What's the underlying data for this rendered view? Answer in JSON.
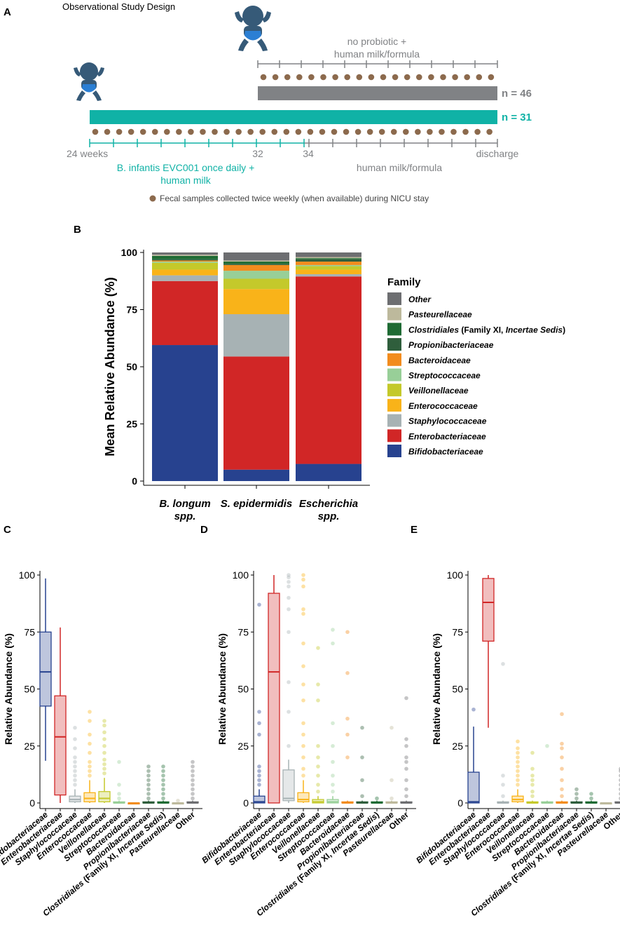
{
  "colors": {
    "teal": "#10b2a6",
    "grey": "#808285",
    "brown": "#8c6a4d",
    "baby": "#365a78",
    "diaper": "#2b7fd4"
  },
  "family_colors": {
    "Bifidobacteriaceae": "#27428f",
    "Enterobacteriaceae": "#d12626",
    "Staphylococcaceae": "#a7b2b4",
    "Enterococcaceae": "#f9b319",
    "Veillonellaceae": "#c4c92b",
    "Streptococcaceae": "#98cf98",
    "Bacteroidaceae": "#f28c1e",
    "Propionibacteriaceae": "#2f5e3c",
    "Clostridiales": "#1f6b34",
    "Pasteurellaceae": "#bdb99c",
    "Other": "#6d6e71"
  },
  "panelA": {
    "letter": "A",
    "title": "Observational Study Design",
    "top_label_line1": "no probiotic +",
    "top_label_line2": "human milk/formula",
    "n_grey": "n = 46",
    "n_teal": "n = 31",
    "tick_24": "24 weeks",
    "tick_32": "32",
    "tick_34": "34",
    "tick_discharge": "discharge",
    "probiotic_line1": "B. infantis EVC001 once daily +",
    "probiotic_line2": "human milk",
    "milk_label": "human milk/formula",
    "legend_text": "Fecal samples collected twice weekly (when available) during NICU stay"
  },
  "panelB": {
    "letter": "B",
    "ylabel": "Mean Relative Abundance (%)",
    "legend_title": "Family",
    "legend_items": [
      {
        "key": "Other",
        "parts": [
          {
            "t": "Other",
            "i": true
          }
        ]
      },
      {
        "key": "Pasteurellaceae",
        "parts": [
          {
            "t": "Pasteurellaceae",
            "i": true
          }
        ]
      },
      {
        "key": "Clostridiales",
        "parts": [
          {
            "t": "Clostridiales",
            "i": true
          },
          {
            "t": " (Family XI, ",
            "i": false
          },
          {
            "t": "Incertae Sedis",
            "i": true
          },
          {
            "t": ")",
            "i": false
          }
        ]
      },
      {
        "key": "Propionibacteriaceae",
        "parts": [
          {
            "t": "Propionibacteriaceae",
            "i": true
          }
        ]
      },
      {
        "key": "Bacteroidaceae",
        "parts": [
          {
            "t": "Bacteroidaceae",
            "i": true
          }
        ]
      },
      {
        "key": "Streptococcaceae",
        "parts": [
          {
            "t": "Streptococcaceae",
            "i": true
          }
        ]
      },
      {
        "key": "Veillonellaceae",
        "parts": [
          {
            "t": "Veillonellaceae",
            "i": true
          }
        ]
      },
      {
        "key": "Enterococcaceae",
        "parts": [
          {
            "t": "Enterococcaceae",
            "i": true
          }
        ]
      },
      {
        "key": "Staphylococcaceae",
        "parts": [
          {
            "t": "Staphylococcaceae",
            "i": true
          }
        ]
      },
      {
        "key": "Enterobacteriaceae",
        "parts": [
          {
            "t": "Enterobacteriaceae",
            "i": true
          }
        ]
      },
      {
        "key": "Bifidobacteriaceae",
        "parts": [
          {
            "t": "Bifidobacteriaceae",
            "i": true
          }
        ]
      }
    ]
  },
  "chart_data": [
    {
      "id": "B",
      "type": "bar",
      "stacked": true,
      "categories": [
        "B. longum spp.",
        "S. epidermidis",
        "Escherichia spp."
      ],
      "category_lines": [
        [
          "B. longum",
          "spp."
        ],
        [
          "S. epidermidis"
        ],
        [
          "Escherichia",
          "spp."
        ]
      ],
      "ylabel": "Mean Relative Abundance (%)",
      "ylim": [
        0,
        100
      ],
      "yticks": [
        0,
        25,
        50,
        75,
        100
      ],
      "legend_title": "Family",
      "series": [
        {
          "name": "Bifidobacteriaceae",
          "values": [
            59.5,
            5,
            7.5
          ]
        },
        {
          "name": "Enterobacteriaceae",
          "values": [
            28,
            49.5,
            82
          ]
        },
        {
          "name": "Staphylococcaceae",
          "values": [
            2.5,
            18.5,
            1
          ]
        },
        {
          "name": "Enterococcaceae",
          "values": [
            2.5,
            11,
            2
          ]
        },
        {
          "name": "Veillonellaceae",
          "values": [
            3,
            4.5,
            1.5
          ]
        },
        {
          "name": "Streptococcaceae",
          "values": [
            0.5,
            3.5,
            0.5
          ]
        },
        {
          "name": "Bacteroidaceae",
          "values": [
            0.5,
            2.5,
            1.5
          ]
        },
        {
          "name": "Propionibacteriaceae",
          "values": [
            0.5,
            0.5,
            1
          ]
        },
        {
          "name": "Clostridiales",
          "values": [
            1.5,
            1,
            0.5
          ]
        },
        {
          "name": "Pasteurellaceae",
          "values": [
            0.5,
            0.5,
            0.5
          ]
        },
        {
          "name": "Other",
          "values": [
            1,
            3.5,
            2
          ]
        }
      ]
    },
    {
      "id": "C",
      "type": "box",
      "ylabel": "Relative Abundance (%)",
      "ylim": [
        0,
        100
      ],
      "yticks": [
        0,
        25,
        50,
        75,
        100
      ],
      "boxes": [
        {
          "family": "Bifidobacteriaceae",
          "q1": 42.5,
          "median": 57.5,
          "q3": 75,
          "lo": 18.5,
          "hi": 98.5,
          "outliers": []
        },
        {
          "family": "Enterobacteriaceae",
          "q1": 3.5,
          "median": 29,
          "q3": 47,
          "lo": 0,
          "hi": 77,
          "outliers": []
        },
        {
          "family": "Staphylococcaceae",
          "q1": 0.5,
          "median": 1.5,
          "q3": 3,
          "lo": 0,
          "hi": 6,
          "outliers": [
            8,
            10,
            12,
            14,
            16,
            18,
            20,
            24,
            28,
            33
          ]
        },
        {
          "family": "Enterococcaceae",
          "q1": 0.5,
          "median": 2,
          "q3": 4.5,
          "lo": 0,
          "hi": 10,
          "outliers": [
            12,
            14,
            16,
            18,
            22,
            26,
            30,
            36,
            40
          ]
        },
        {
          "family": "Veillonellaceae",
          "q1": 0.5,
          "median": 2,
          "q3": 5,
          "lo": 0,
          "hi": 11,
          "outliers": [
            13,
            15,
            17,
            19,
            22,
            25,
            28,
            31,
            34,
            36
          ]
        },
        {
          "family": "Streptococcaceae",
          "q1": 0,
          "median": 0,
          "q3": 0.5,
          "lo": 0,
          "hi": 1,
          "outliers": [
            2,
            4,
            8,
            18
          ]
        },
        {
          "family": "Bacteroidaceae",
          "q1": 0,
          "median": 0,
          "q3": 0,
          "lo": 0,
          "hi": 0,
          "outliers": []
        },
        {
          "family": "Propionibacteriaceae",
          "q1": 0,
          "median": 0,
          "q3": 0.5,
          "lo": 0,
          "hi": 1,
          "outliers": [
            2,
            4,
            6,
            8,
            10,
            12,
            14,
            16
          ]
        },
        {
          "family": "Clostridiales",
          "q1": 0,
          "median": 0,
          "q3": 0.5,
          "lo": 0,
          "hi": 1,
          "outliers": [
            2,
            4,
            6,
            8,
            10,
            12,
            14,
            16
          ]
        },
        {
          "family": "Pasteurellaceae",
          "q1": 0,
          "median": 0,
          "q3": 0,
          "lo": 0,
          "hi": 0,
          "outliers": [
            1
          ]
        },
        {
          "family": "Other",
          "q1": 0,
          "median": 0,
          "q3": 0.5,
          "lo": 0,
          "hi": 1,
          "outliers": [
            2,
            4,
            6,
            8,
            10,
            12,
            14,
            16,
            18
          ]
        }
      ]
    },
    {
      "id": "D",
      "type": "box",
      "ylabel": "Relative Abundance (%)",
      "ylim": [
        0,
        100
      ],
      "yticks": [
        0,
        25,
        50,
        75,
        100
      ],
      "boxes": [
        {
          "family": "Bifidobacteriaceae",
          "q1": 0,
          "median": 0.5,
          "q3": 3,
          "lo": 0,
          "hi": 6,
          "outliers": [
            8,
            10,
            12,
            14,
            16,
            30,
            35,
            40,
            87
          ]
        },
        {
          "family": "Enterobacteriaceae",
          "q1": 0,
          "median": 57.5,
          "q3": 92,
          "lo": 0,
          "hi": 100,
          "outliers": []
        },
        {
          "family": "Staphylococcaceae",
          "q1": 1,
          "median": 2,
          "q3": 14.5,
          "lo": 0,
          "hi": 19,
          "outliers": [
            25,
            40,
            53,
            75,
            85,
            90,
            95,
            97,
            99,
            100
          ]
        },
        {
          "family": "Enterococcaceae",
          "q1": 0.5,
          "median": 1.5,
          "q3": 4.5,
          "lo": 0,
          "hi": 10,
          "outliers": [
            12,
            15,
            20,
            25,
            30,
            35,
            45,
            52,
            60,
            70,
            83,
            85,
            95,
            98,
            100
          ]
        },
        {
          "family": "Veillonellaceae",
          "q1": 0,
          "median": 0.5,
          "q3": 1.5,
          "lo": 0,
          "hi": 3,
          "outliers": [
            5,
            8,
            12,
            16,
            20,
            25,
            45,
            52,
            68
          ]
        },
        {
          "family": "Streptococcaceae",
          "q1": 0,
          "median": 0.5,
          "q3": 1.5,
          "lo": 0,
          "hi": 3,
          "outliers": [
            5,
            8,
            12,
            18,
            25,
            35,
            70,
            76
          ]
        },
        {
          "family": "Bacteroidaceae",
          "q1": 0,
          "median": 0,
          "q3": 0.5,
          "lo": 0,
          "hi": 1,
          "outliers": [
            20,
            30,
            37,
            57,
            75
          ]
        },
        {
          "family": "Propionibacteriaceae",
          "q1": 0,
          "median": 0,
          "q3": 0.5,
          "lo": 0,
          "hi": 1,
          "outliers": [
            3,
            10,
            20,
            33
          ]
        },
        {
          "family": "Clostridiales",
          "q1": 0,
          "median": 0,
          "q3": 0.5,
          "lo": 0,
          "hi": 1,
          "outliers": [
            2
          ]
        },
        {
          "family": "Pasteurellaceae",
          "q1": 0,
          "median": 0,
          "q3": 0.5,
          "lo": 0,
          "hi": 1,
          "outliers": [
            2,
            10,
            33
          ]
        },
        {
          "family": "Other",
          "q1": 0,
          "median": 0,
          "q3": 0.5,
          "lo": 0,
          "hi": 1,
          "outliers": [
            3,
            6,
            10,
            15,
            18,
            20,
            25,
            28,
            46
          ]
        }
      ]
    },
    {
      "id": "E",
      "type": "box",
      "ylabel": "Relative Abundance (%)",
      "ylim": [
        0,
        100
      ],
      "yticks": [
        0,
        25,
        50,
        75,
        100
      ],
      "boxes": [
        {
          "family": "Bifidobacteriaceae",
          "q1": 0,
          "median": 0.5,
          "q3": 13.5,
          "lo": 0,
          "hi": 33.5,
          "outliers": [
            41
          ]
        },
        {
          "family": "Enterobacteriaceae",
          "q1": 71,
          "median": 88,
          "q3": 98.5,
          "lo": 33,
          "hi": 100,
          "outliers": []
        },
        {
          "family": "Staphylococcaceae",
          "q1": 0,
          "median": 0,
          "q3": 0.5,
          "lo": 0,
          "hi": 1,
          "outliers": [
            3,
            8,
            12,
            61
          ]
        },
        {
          "family": "Enterococcaceae",
          "q1": 0.5,
          "median": 1.5,
          "q3": 3,
          "lo": 0,
          "hi": 6,
          "outliers": [
            8,
            10,
            12,
            14,
            16,
            18,
            20,
            22,
            24,
            27
          ]
        },
        {
          "family": "Veillonellaceae",
          "q1": 0,
          "median": 0,
          "q3": 0.5,
          "lo": 0,
          "hi": 1,
          "outliers": [
            3,
            5,
            8,
            10,
            12,
            15,
            22
          ]
        },
        {
          "family": "Streptococcaceae",
          "q1": 0,
          "median": 0,
          "q3": 0.5,
          "lo": 0,
          "hi": 1,
          "outliers": [
            25
          ]
        },
        {
          "family": "Bacteroidaceae",
          "q1": 0,
          "median": 0,
          "q3": 0.5,
          "lo": 0,
          "hi": 1,
          "outliers": [
            3,
            6,
            10,
            15,
            20,
            24,
            26,
            39
          ]
        },
        {
          "family": "Propionibacteriaceae",
          "q1": 0,
          "median": 0,
          "q3": 0.5,
          "lo": 0,
          "hi": 1,
          "outliers": [
            2,
            4,
            6
          ]
        },
        {
          "family": "Clostridiales",
          "q1": 0,
          "median": 0,
          "q3": 0.5,
          "lo": 0,
          "hi": 1,
          "outliers": [
            2,
            4
          ]
        },
        {
          "family": "Pasteurellaceae",
          "q1": 0,
          "median": 0,
          "q3": 0,
          "lo": 0,
          "hi": 0,
          "outliers": []
        },
        {
          "family": "Other",
          "q1": 0,
          "median": 0,
          "q3": 0.5,
          "lo": 0,
          "hi": 1,
          "outliers": [
            2,
            4,
            6,
            8,
            10,
            12,
            14,
            15
          ]
        }
      ]
    }
  ],
  "box_xlabels": [
    [
      {
        "t": "Bifidobacteriaceae",
        "i": true
      }
    ],
    [
      {
        "t": "Enterobacteriaceae",
        "i": true
      }
    ],
    [
      {
        "t": "Staphylococcaceae",
        "i": true
      }
    ],
    [
      {
        "t": "Enterococcaceae",
        "i": true
      }
    ],
    [
      {
        "t": "Veillonellaceae",
        "i": true
      }
    ],
    [
      {
        "t": "Streptococcaceae",
        "i": true
      }
    ],
    [
      {
        "t": "Bacteroidaceae",
        "i": true
      }
    ],
    [
      {
        "t": "Propionibacteriaceae",
        "i": true
      }
    ],
    [
      {
        "t": "Clostridiales",
        "i": true
      },
      {
        "t": " (Family XI, ",
        "i": false
      },
      {
        "t": "Incertae Sedis",
        "i": true
      },
      {
        "t": ")",
        "i": false
      }
    ],
    [
      {
        "t": "Pasteurellaceae",
        "i": true
      }
    ],
    [
      {
        "t": "Other",
        "i": false
      }
    ]
  ]
}
